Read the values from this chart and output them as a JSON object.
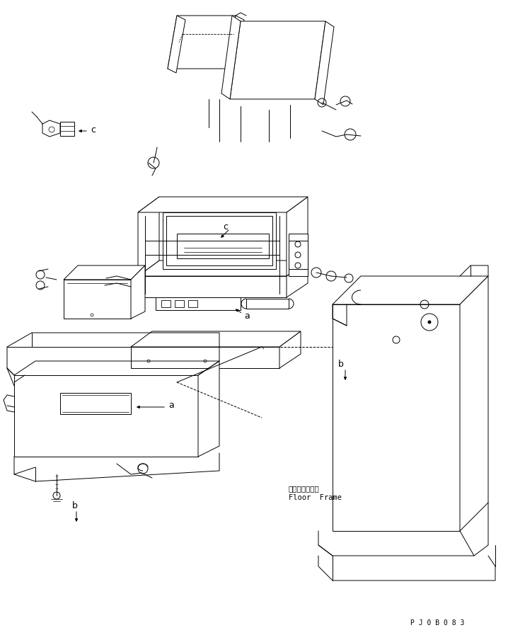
{
  "background_color": "#ffffff",
  "line_color": "#000000",
  "footer_code": "P J 0 B 0 8 3",
  "floor_frame_jp": "フロアフレーム",
  "floor_frame_en": "Floor  Frame",
  "fig_width": 7.18,
  "fig_height": 8.97,
  "dpi": 100
}
